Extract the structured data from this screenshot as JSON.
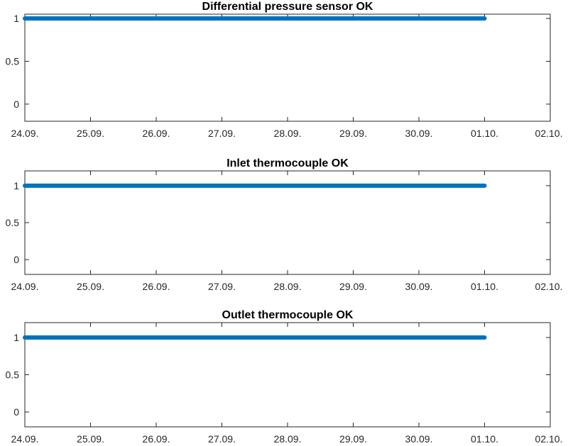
{
  "chart_data": [
    {
      "type": "line",
      "title": "Differential pressure sensor OK",
      "xlabel": "",
      "ylabel": "",
      "x_ticks": [
        "24.09.",
        "25.09.",
        "26.09.",
        "27.09.",
        "28.09.",
        "29.09.",
        "30.09.",
        "01.10.",
        "02.10."
      ],
      "xlim": [
        "24.09.",
        "02.10."
      ],
      "y_ticks": [
        0,
        0.5,
        1
      ],
      "ylim": [
        -0.2,
        1.05
      ],
      "grid": false,
      "series": [
        {
          "x_start": "24.09.",
          "x_end": "01.10.",
          "value": 1,
          "color": "#0072BD"
        }
      ]
    },
    {
      "type": "line",
      "title": "Inlet thermocouple OK",
      "xlabel": "",
      "ylabel": "",
      "x_ticks": [
        "24.09.",
        "25.09.",
        "26.09.",
        "27.09.",
        "28.09.",
        "29.09.",
        "30.09.",
        "01.10.",
        "02.10."
      ],
      "xlim": [
        "24.09.",
        "02.10."
      ],
      "y_ticks": [
        0,
        0.5,
        1
      ],
      "ylim": [
        -0.2,
        1.2
      ],
      "grid": false,
      "series": [
        {
          "x_start": "24.09.",
          "x_end": "01.10.",
          "value": 1,
          "color": "#0072BD"
        }
      ]
    },
    {
      "type": "line",
      "title": "Outlet thermocouple OK",
      "xlabel": "",
      "ylabel": "",
      "x_ticks": [
        "24.09.",
        "25.09.",
        "26.09.",
        "27.09.",
        "28.09.",
        "29.09.",
        "30.09.",
        "01.10.",
        "02.10."
      ],
      "xlim": [
        "24.09.",
        "02.10."
      ],
      "y_ticks": [
        0,
        0.5,
        1
      ],
      "ylim": [
        -0.2,
        1.2
      ],
      "grid": false,
      "series": [
        {
          "x_start": "24.09.",
          "x_end": "01.10.",
          "value": 1,
          "color": "#0072BD"
        }
      ]
    }
  ]
}
